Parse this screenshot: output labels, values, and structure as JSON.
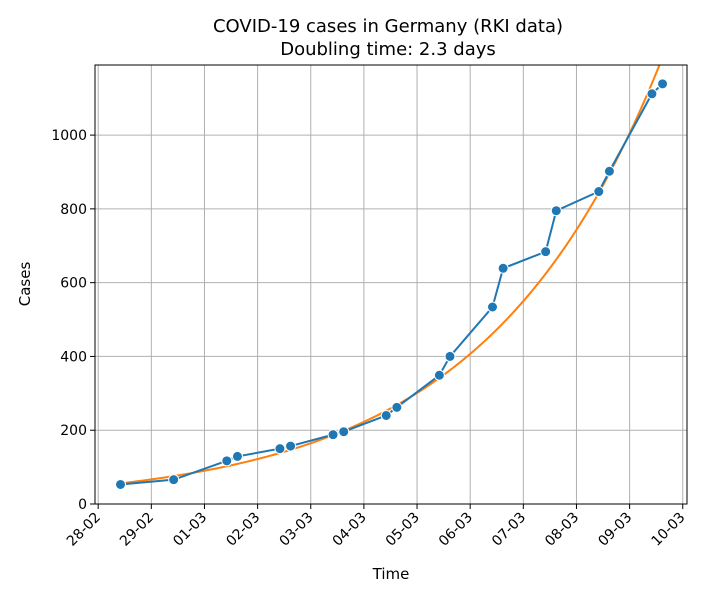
{
  "chart_data": {
    "type": "line",
    "title": "COVID-19 cases in Germany (RKI data)",
    "subtitle": "Doubling time: 2.3 days",
    "xlabel": "Time",
    "ylabel": "Cases",
    "x_ticks": [
      "28-02",
      "29-02",
      "01-03",
      "02-03",
      "03-03",
      "04-03",
      "05-03",
      "06-03",
      "07-03",
      "08-03",
      "09-03",
      "10-03"
    ],
    "x_tick_values": [
      0,
      1,
      2,
      3,
      4,
      5,
      6,
      7,
      8,
      9,
      10,
      11
    ],
    "y_ticks": [
      0,
      200,
      400,
      600,
      800,
      1000
    ],
    "xlim": [
      -0.06,
      11.08
    ],
    "ylim": [
      0,
      1190
    ],
    "grid": true,
    "series": [
      {
        "color": "#1f77b4",
        "marker": "circle",
        "points": [
          [
            0.42,
            53
          ],
          [
            1.42,
            66
          ],
          [
            2.42,
            117
          ],
          [
            2.62,
            129
          ],
          [
            3.42,
            150
          ],
          [
            3.62,
            157
          ],
          [
            4.42,
            188
          ],
          [
            4.62,
            196
          ],
          [
            5.42,
            240
          ],
          [
            5.62,
            262
          ],
          [
            6.42,
            349
          ],
          [
            6.62,
            400
          ],
          [
            7.42,
            534
          ],
          [
            7.62,
            639
          ],
          [
            8.42,
            684
          ],
          [
            8.62,
            795
          ],
          [
            9.42,
            847
          ],
          [
            9.62,
            902
          ],
          [
            10.42,
            1112
          ],
          [
            10.62,
            1139
          ]
        ]
      },
      {
        "color": "#ff7f0e",
        "marker": "none",
        "fit": {
          "a": 56,
          "doubling_days": 2.3,
          "x0": 0.42,
          "x_start": 0.42,
          "x_end": 11.0
        }
      }
    ]
  }
}
